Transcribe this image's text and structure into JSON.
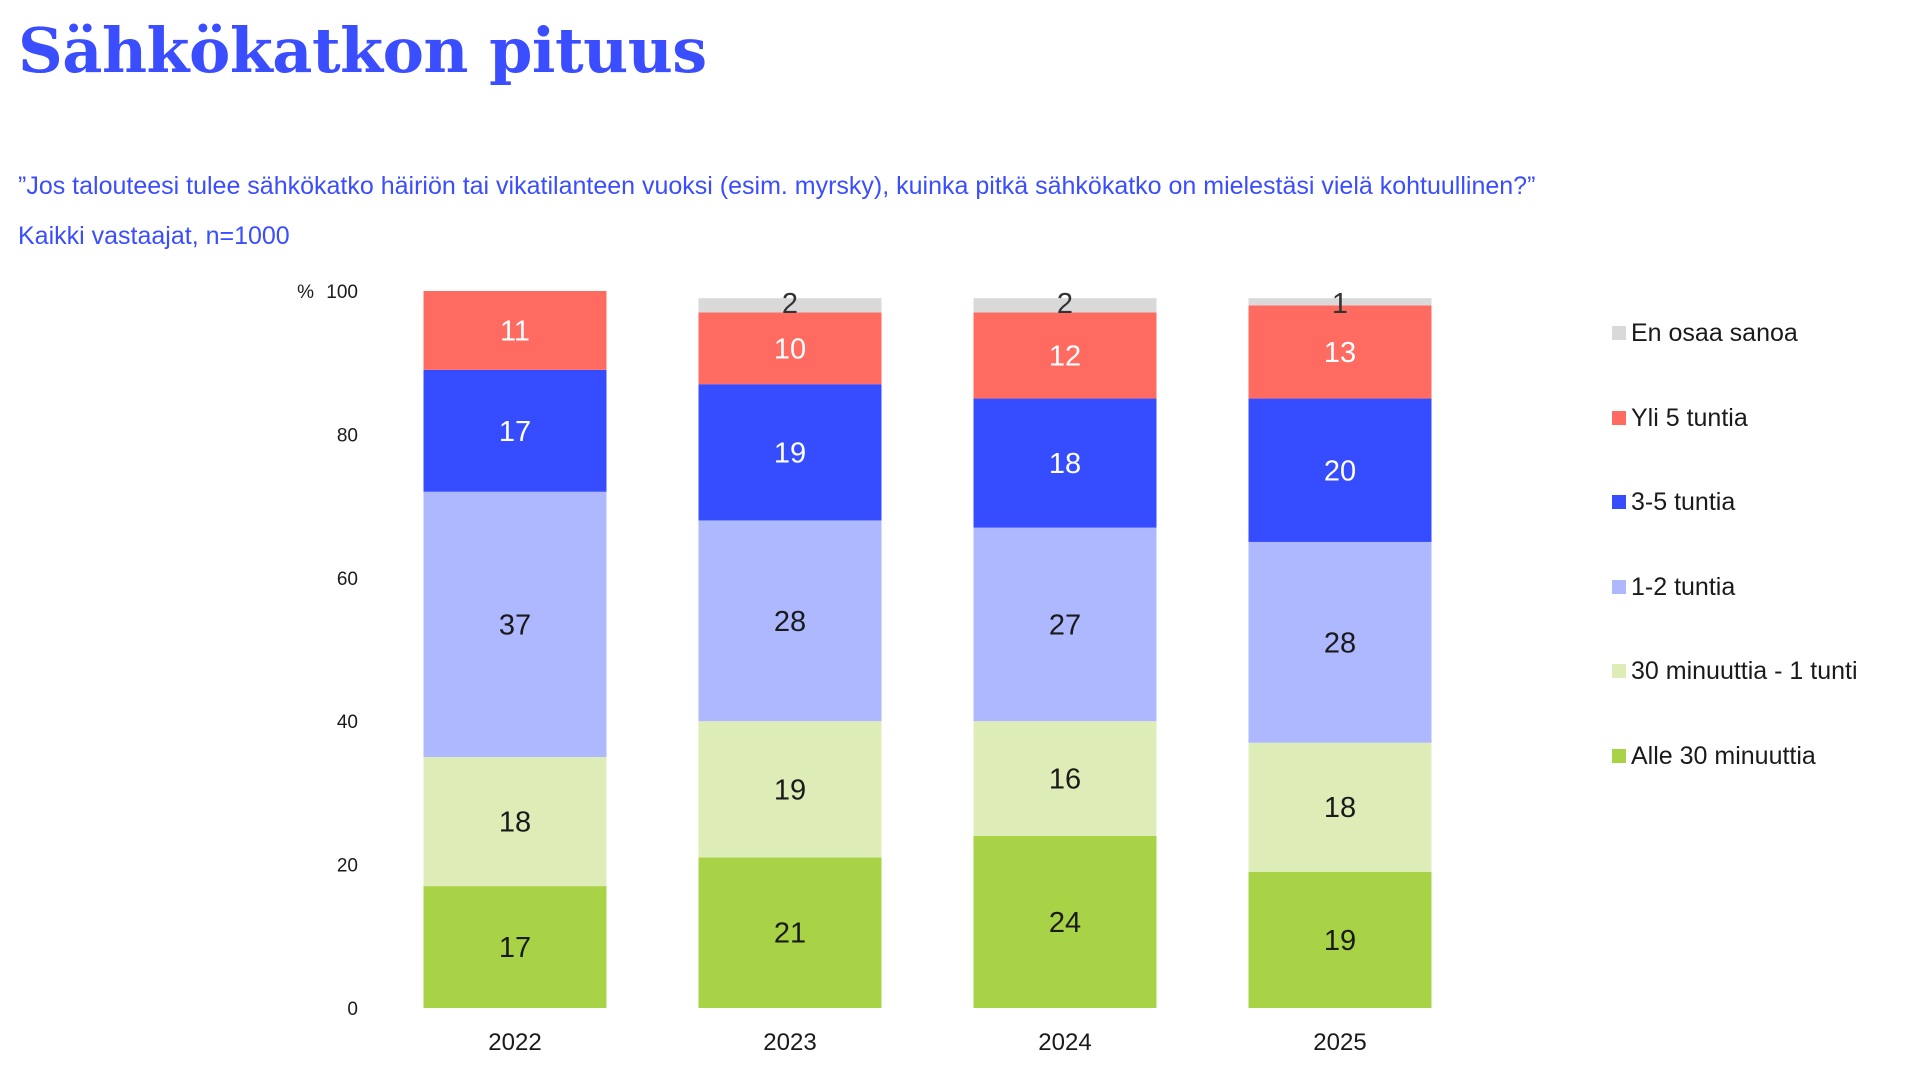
{
  "header": {
    "title": "Sähkökatkon pituus",
    "question": "”Jos talouteesi tulee sähkökatko häiriön tai vikatilanteen vuoksi (esim. myrsky), kuinka pitkä sähkökatko on mielestäsi vielä kohtuullinen?”",
    "base": "Kaikki vastaajat, n=1000"
  },
  "legend": {
    "items": [
      {
        "label": "En osaa sanoa",
        "color": "#d9d9d9"
      },
      {
        "label": "Yli 5 tuntia",
        "color": "#ff6b61"
      },
      {
        "label": "3-5 tuntia",
        "color": "#364cff"
      },
      {
        "label": "1-2 tuntia",
        "color": "#aeb8ff"
      },
      {
        "label": "30 minuuttia - 1 tunti",
        "color": "#deedb8"
      },
      {
        "label": "Alle 30 minuuttia",
        "color": "#a8d346"
      }
    ]
  },
  "chart_data": {
    "type": "bar",
    "stacked": true,
    "categories": [
      "2022",
      "2023",
      "2024",
      "2025"
    ],
    "ylabel": "%",
    "ylim": [
      0,
      100
    ],
    "yticks": [
      0,
      20,
      40,
      60,
      80,
      100
    ],
    "series": [
      {
        "name": "Alle 30 minuuttia",
        "color": "#a8d346",
        "label_color": "#1a1a1a",
        "values": [
          17,
          21,
          24,
          19
        ]
      },
      {
        "name": "30 minuuttia - 1 tunti",
        "color": "#deedb8",
        "label_color": "#1a1a1a",
        "values": [
          18,
          19,
          16,
          18
        ]
      },
      {
        "name": "1-2 tuntia",
        "color": "#aeb8ff",
        "label_color": "#1a1a1a",
        "values": [
          37,
          28,
          27,
          28
        ]
      },
      {
        "name": "3-5 tuntia",
        "color": "#364cff",
        "label_color": "#ffffff",
        "values": [
          17,
          19,
          18,
          20
        ]
      },
      {
        "name": "Yli 5 tuntia",
        "color": "#ff6b61",
        "label_color": "#ffffff",
        "values": [
          11,
          10,
          12,
          13
        ]
      },
      {
        "name": "En osaa sanoa",
        "color": "#d9d9d9",
        "label_color": "#333333",
        "values": [
          null,
          2,
          2,
          1
        ]
      }
    ]
  }
}
